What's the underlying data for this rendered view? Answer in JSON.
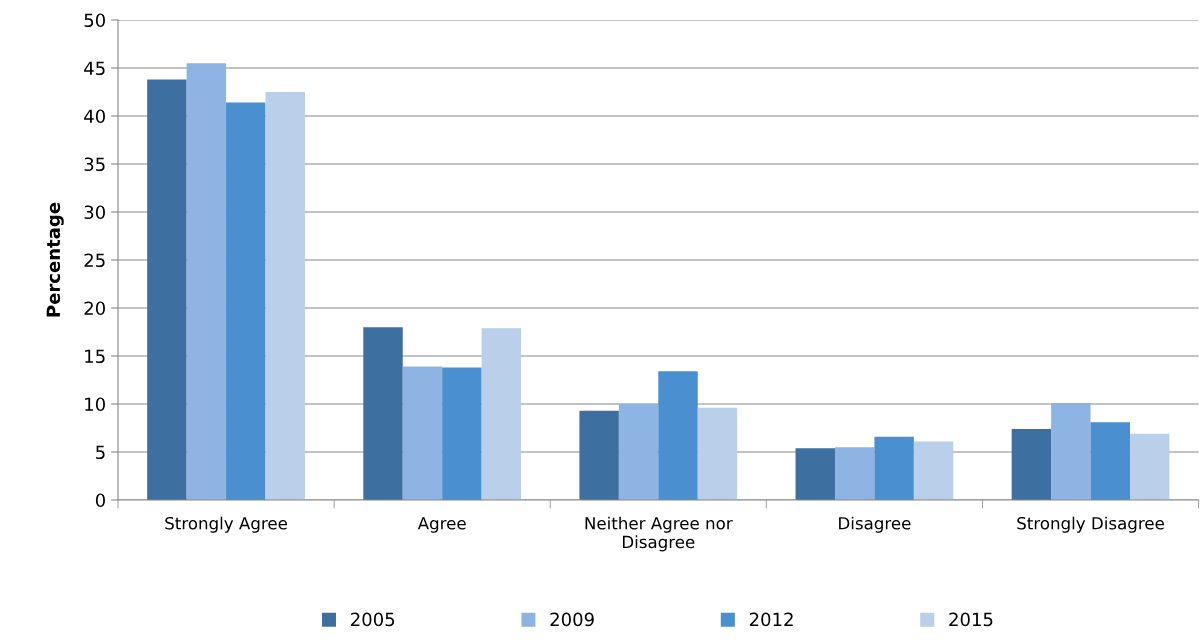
{
  "chart_data": {
    "type": "bar",
    "ylabel": "Percentage",
    "categories": [
      "Strongly Agree",
      "Agree",
      "Neither Agree nor\nDisagree",
      "Disagree",
      "Strongly Disagree"
    ],
    "series": [
      {
        "name": "2005",
        "color": "#3d6fa0",
        "values": [
          43.8,
          18.0,
          9.3,
          5.4,
          7.4
        ]
      },
      {
        "name": "2009",
        "color": "#8db4e2",
        "values": [
          45.5,
          13.9,
          10.0,
          5.5,
          10.1
        ]
      },
      {
        "name": "2012",
        "color": "#4a8fd0",
        "values": [
          41.4,
          13.8,
          13.4,
          6.6,
          8.1
        ]
      },
      {
        "name": "2015",
        "color": "#b9cfea",
        "values": [
          42.5,
          17.9,
          9.6,
          6.1,
          6.9
        ]
      }
    ],
    "ylim": [
      0,
      50
    ],
    "yticks": [
      0,
      5,
      10,
      15,
      20,
      25,
      30,
      35,
      40,
      45,
      50
    ],
    "grid": "y",
    "legend": "bottom"
  }
}
